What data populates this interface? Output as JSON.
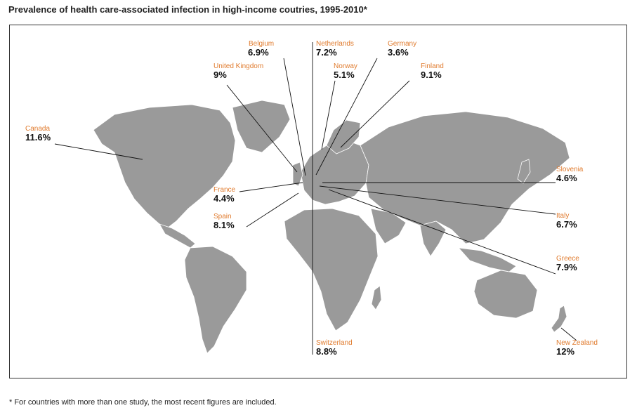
{
  "title": "Prevalence of health care-associated infection in high-income coutries, 1995-2010*",
  "footnote": "* For countries with more than one study, the most recent figures are included.",
  "colors": {
    "land": "#9a9a9a",
    "label": "#e07b2e",
    "value": "#111111",
    "line": "#111111"
  },
  "countries": [
    {
      "name": "Belgium",
      "value": "6.9%"
    },
    {
      "name": "Netherlands",
      "value": "7.2%"
    },
    {
      "name": "Germany",
      "value": "3.6%"
    },
    {
      "name": "United Kingdom",
      "value": "9%"
    },
    {
      "name": "Norway",
      "value": "5.1%"
    },
    {
      "name": "Finland",
      "value": "9.1%"
    },
    {
      "name": "Canada",
      "value": "11.6%"
    },
    {
      "name": "Slovenia",
      "value": "4.6%"
    },
    {
      "name": "France",
      "value": "4.4%"
    },
    {
      "name": "Spain",
      "value": "8.1%"
    },
    {
      "name": "Italy",
      "value": "6.7%"
    },
    {
      "name": "Greece",
      "value": "7.9%"
    },
    {
      "name": "Switzerland",
      "value": "8.8%"
    },
    {
      "name": "New Zealand",
      "value": "12%"
    }
  ]
}
